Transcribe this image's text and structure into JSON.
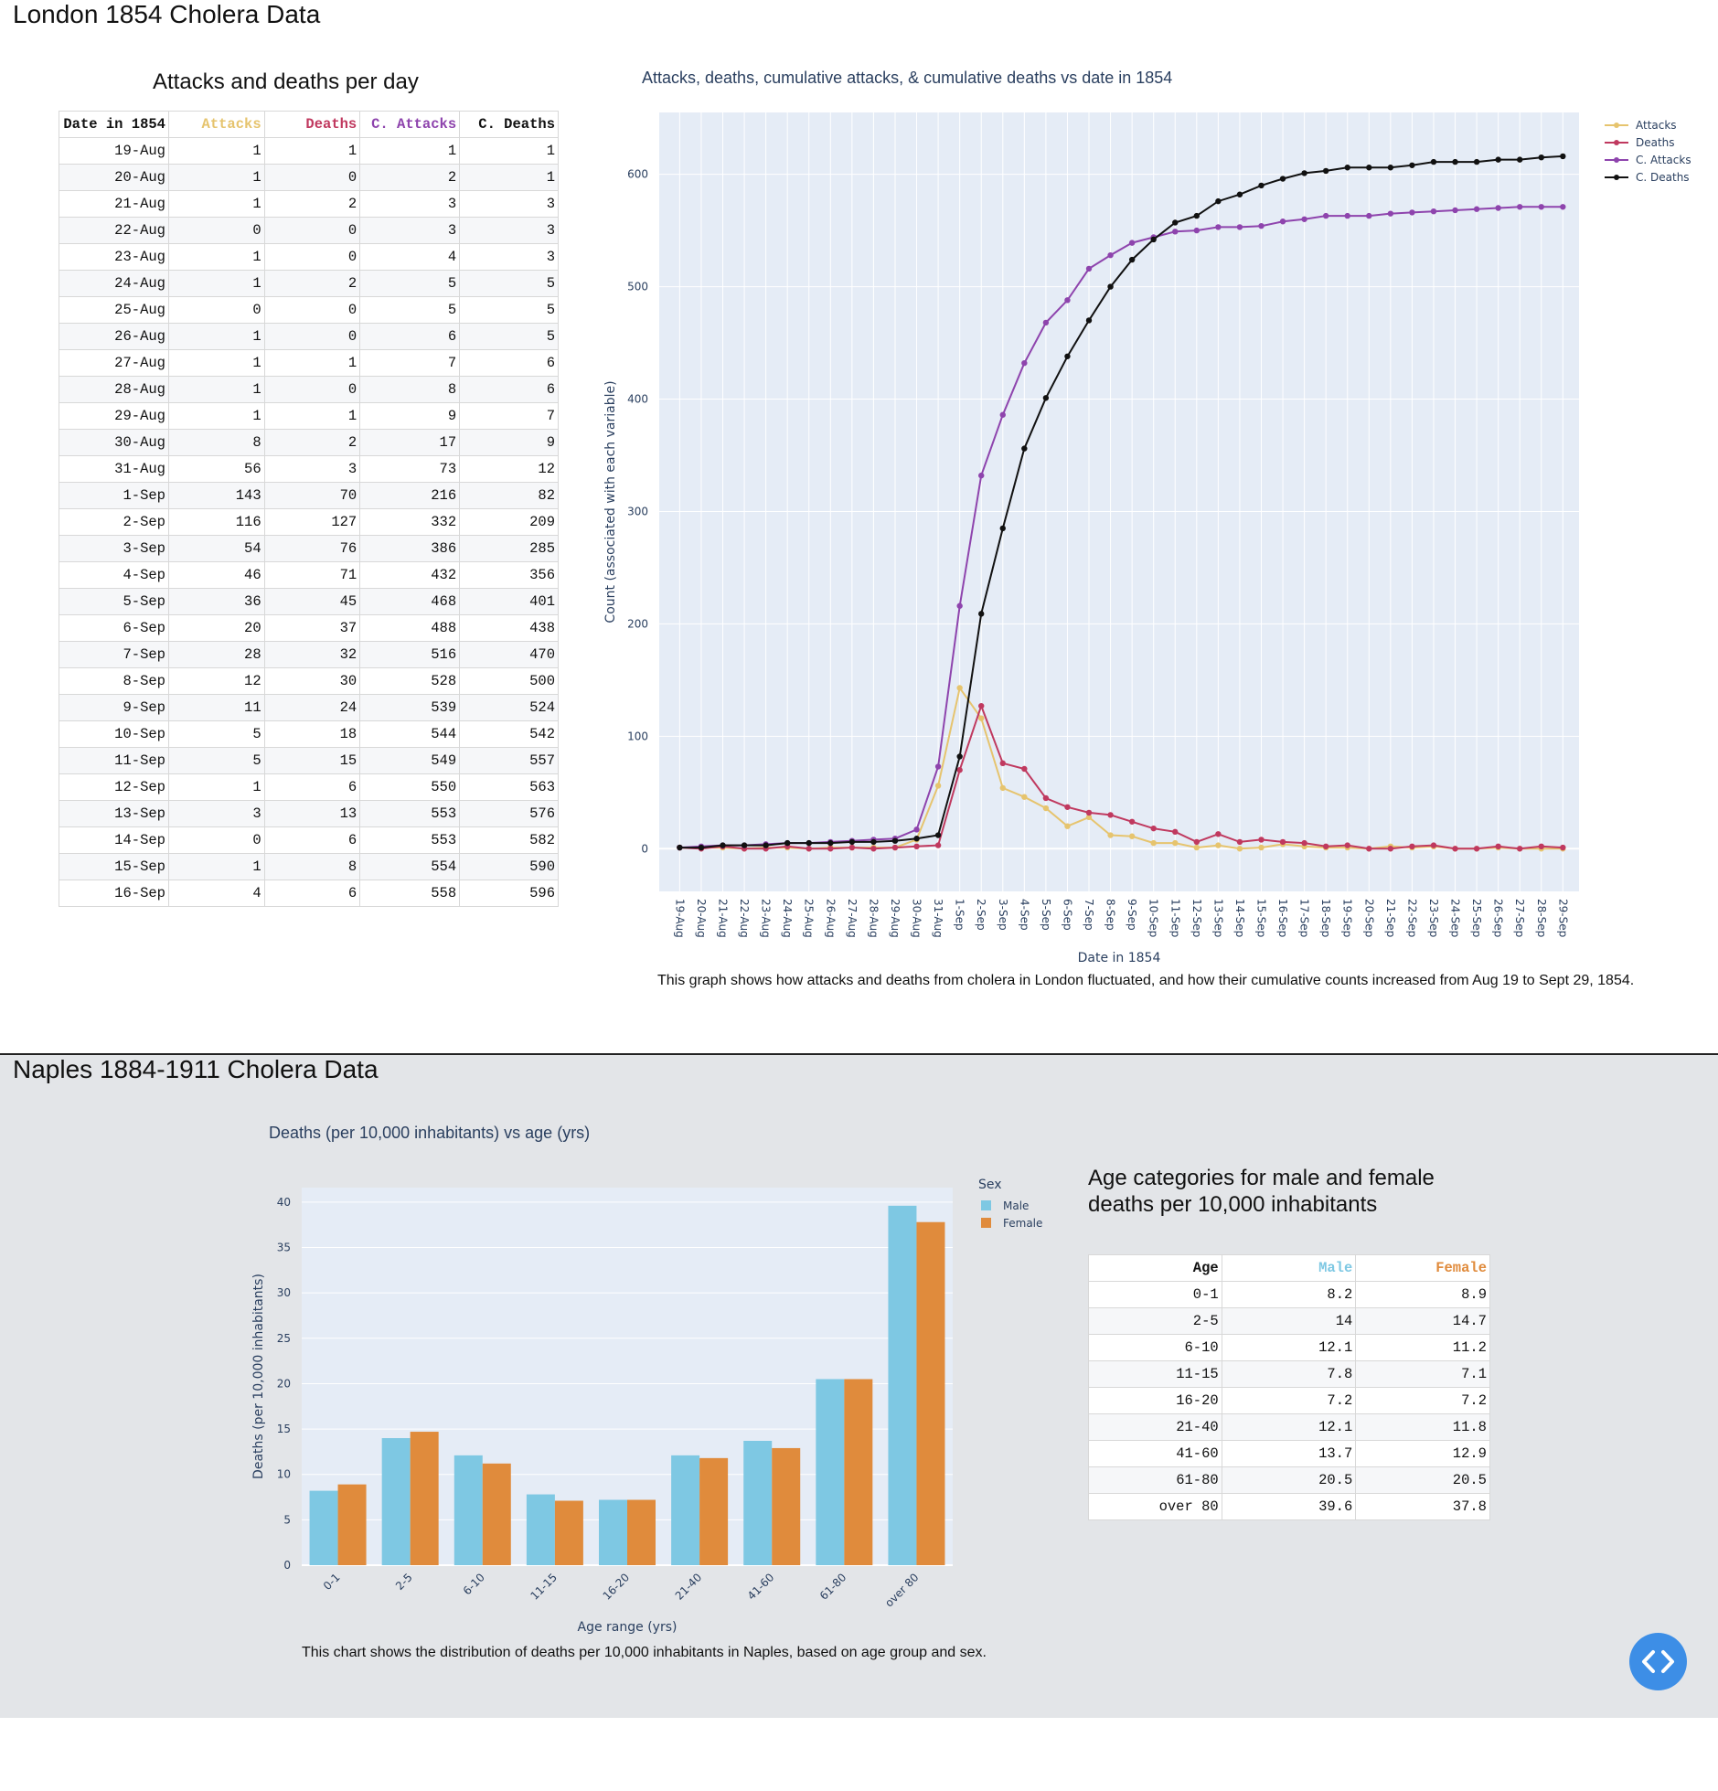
{
  "section1": {
    "heading": "London 1854 Cholera Data",
    "table_title": "Attacks and deaths per day",
    "table": {
      "headers": [
        "Date in 1854",
        "Attacks",
        "Deaths",
        "C. Attacks",
        "C. Deaths"
      ],
      "header_colors": [
        "#111111",
        "#e6c46e",
        "#c0395f",
        "#8e44ad",
        "#111111"
      ],
      "rows": [
        [
          "19-Aug",
          "1",
          "1",
          "1",
          "1"
        ],
        [
          "20-Aug",
          "1",
          "0",
          "2",
          "1"
        ],
        [
          "21-Aug",
          "1",
          "2",
          "3",
          "3"
        ],
        [
          "22-Aug",
          "0",
          "0",
          "3",
          "3"
        ],
        [
          "23-Aug",
          "1",
          "0",
          "4",
          "3"
        ],
        [
          "24-Aug",
          "1",
          "2",
          "5",
          "5"
        ],
        [
          "25-Aug",
          "0",
          "0",
          "5",
          "5"
        ],
        [
          "26-Aug",
          "1",
          "0",
          "6",
          "5"
        ],
        [
          "27-Aug",
          "1",
          "1",
          "7",
          "6"
        ],
        [
          "28-Aug",
          "1",
          "0",
          "8",
          "6"
        ],
        [
          "29-Aug",
          "1",
          "1",
          "9",
          "7"
        ],
        [
          "30-Aug",
          "8",
          "2",
          "17",
          "9"
        ],
        [
          "31-Aug",
          "56",
          "3",
          "73",
          "12"
        ],
        [
          "1-Sep",
          "143",
          "70",
          "216",
          "82"
        ],
        [
          "2-Sep",
          "116",
          "127",
          "332",
          "209"
        ],
        [
          "3-Sep",
          "54",
          "76",
          "386",
          "285"
        ],
        [
          "4-Sep",
          "46",
          "71",
          "432",
          "356"
        ],
        [
          "5-Sep",
          "36",
          "45",
          "468",
          "401"
        ],
        [
          "6-Sep",
          "20",
          "37",
          "488",
          "438"
        ],
        [
          "7-Sep",
          "28",
          "32",
          "516",
          "470"
        ],
        [
          "8-Sep",
          "12",
          "30",
          "528",
          "500"
        ],
        [
          "9-Sep",
          "11",
          "24",
          "539",
          "524"
        ],
        [
          "10-Sep",
          "5",
          "18",
          "544",
          "542"
        ],
        [
          "11-Sep",
          "5",
          "15",
          "549",
          "557"
        ],
        [
          "12-Sep",
          "1",
          "6",
          "550",
          "563"
        ],
        [
          "13-Sep",
          "3",
          "13",
          "553",
          "576"
        ],
        [
          "14-Sep",
          "0",
          "6",
          "553",
          "582"
        ],
        [
          "15-Sep",
          "1",
          "8",
          "554",
          "590"
        ],
        [
          "16-Sep",
          "4",
          "6",
          "558",
          "596"
        ]
      ]
    },
    "chart_caption": "This graph shows how attacks and deaths from cholera in London fluctuated, and how their cumulative counts increased from Aug 19 to Sept 29, 1854."
  },
  "section2": {
    "heading": "Naples 1884-1911 Cholera Data",
    "table_title": "Age categories for male and female deaths per 10,000 inhabitants",
    "table": {
      "headers": [
        "Age",
        "Male",
        "Female"
      ],
      "header_colors": [
        "#111111",
        "#7ec8e3",
        "#e08b3c"
      ],
      "rows": [
        [
          "0-1",
          "8.2",
          "8.9"
        ],
        [
          "2-5",
          "14",
          "14.7"
        ],
        [
          "6-10",
          "12.1",
          "11.2"
        ],
        [
          "11-15",
          "7.8",
          "7.1"
        ],
        [
          "16-20",
          "7.2",
          "7.2"
        ],
        [
          "21-40",
          "12.1",
          "11.8"
        ],
        [
          "41-60",
          "13.7",
          "12.9"
        ],
        [
          "61-80",
          "20.5",
          "20.5"
        ],
        [
          "over 80",
          "39.6",
          "37.8"
        ]
      ]
    },
    "chart_caption": "This chart shows the distribution of deaths per 10,000 inhabitants in Naples, based on age group and sex."
  },
  "code_button_icon": "code-icon",
  "chart_data": [
    {
      "type": "line",
      "title": "Attacks, deaths, cumulative attacks, & cumulative deaths vs date in 1854",
      "xlabel": "Date in 1854",
      "ylabel": "Count (associated with each variable)",
      "ylim": [
        -38,
        655
      ],
      "yticks": [
        0,
        100,
        200,
        300,
        400,
        500,
        600
      ],
      "legend_position": "top-right",
      "x": [
        "19-Aug",
        "20-Aug",
        "21-Aug",
        "22-Aug",
        "23-Aug",
        "24-Aug",
        "25-Aug",
        "26-Aug",
        "27-Aug",
        "28-Aug",
        "29-Aug",
        "30-Aug",
        "31-Aug",
        "1-Sep",
        "2-Sep",
        "3-Sep",
        "4-Sep",
        "5-Sep",
        "6-Sep",
        "7-Sep",
        "8-Sep",
        "9-Sep",
        "10-Sep",
        "11-Sep",
        "12-Sep",
        "13-Sep",
        "14-Sep",
        "15-Sep",
        "16-Sep",
        "17-Sep",
        "18-Sep",
        "19-Sep",
        "20-Sep",
        "21-Sep",
        "22-Sep",
        "23-Sep",
        "24-Sep",
        "25-Sep",
        "26-Sep",
        "27-Sep",
        "28-Sep",
        "29-Sep"
      ],
      "series": [
        {
          "name": "Attacks",
          "color": "#e6c46e",
          "values": [
            1,
            1,
            1,
            0,
            1,
            1,
            0,
            1,
            1,
            1,
            1,
            8,
            56,
            143,
            116,
            54,
            46,
            36,
            20,
            28,
            12,
            11,
            5,
            5,
            1,
            3,
            0,
            1,
            4,
            2,
            1,
            1,
            0,
            2,
            1,
            2,
            0,
            0,
            1,
            0,
            0,
            0
          ]
        },
        {
          "name": "Deaths",
          "color": "#c0395f",
          "values": [
            1,
            0,
            2,
            0,
            0,
            2,
            0,
            0,
            1,
            0,
            1,
            2,
            3,
            70,
            127,
            76,
            71,
            45,
            37,
            32,
            30,
            24,
            18,
            15,
            6,
            13,
            6,
            8,
            6,
            5,
            2,
            3,
            0,
            0,
            2,
            3,
            0,
            0,
            2,
            0,
            2,
            1
          ]
        },
        {
          "name": "C. Attacks",
          "color": "#8e44ad",
          "values": [
            1,
            2,
            3,
            3,
            4,
            5,
            5,
            6,
            7,
            8,
            9,
            17,
            73,
            216,
            332,
            386,
            432,
            468,
            488,
            516,
            528,
            539,
            544,
            549,
            550,
            553,
            553,
            554,
            558,
            560,
            563,
            563,
            563,
            565,
            566,
            567,
            568,
            569,
            570,
            571,
            571,
            571
          ]
        },
        {
          "name": "C. Deaths",
          "color": "#111111",
          "values": [
            1,
            1,
            3,
            3,
            3,
            5,
            5,
            5,
            6,
            6,
            7,
            9,
            12,
            82,
            209,
            285,
            356,
            401,
            438,
            470,
            500,
            524,
            542,
            557,
            563,
            576,
            582,
            590,
            596,
            601,
            603,
            606,
            606,
            606,
            608,
            611,
            611,
            611,
            613,
            613,
            615,
            616
          ]
        }
      ]
    },
    {
      "type": "bar",
      "title": "Deaths (per 10,000 inhabitants) vs age (yrs)",
      "xlabel": "Age range (yrs)",
      "ylabel": "Deaths (per 10,000 inhabitants)",
      "ylim": [
        0,
        41.6
      ],
      "yticks": [
        0,
        5,
        10,
        15,
        20,
        25,
        30,
        35,
        40
      ],
      "legend_title": "Sex",
      "legend_position": "top-right",
      "categories": [
        "0-1",
        "2-5",
        "6-10",
        "11-15",
        "16-20",
        "21-40",
        "41-60",
        "61-80",
        "over 80"
      ],
      "series": [
        {
          "name": "Male",
          "color": "#7ec8e3",
          "values": [
            8.2,
            14,
            12.1,
            7.8,
            7.2,
            12.1,
            13.7,
            20.5,
            39.6
          ]
        },
        {
          "name": "Female",
          "color": "#e08b3c",
          "values": [
            8.9,
            14.7,
            11.2,
            7.1,
            7.2,
            11.8,
            12.9,
            20.5,
            37.8
          ]
        }
      ]
    }
  ]
}
